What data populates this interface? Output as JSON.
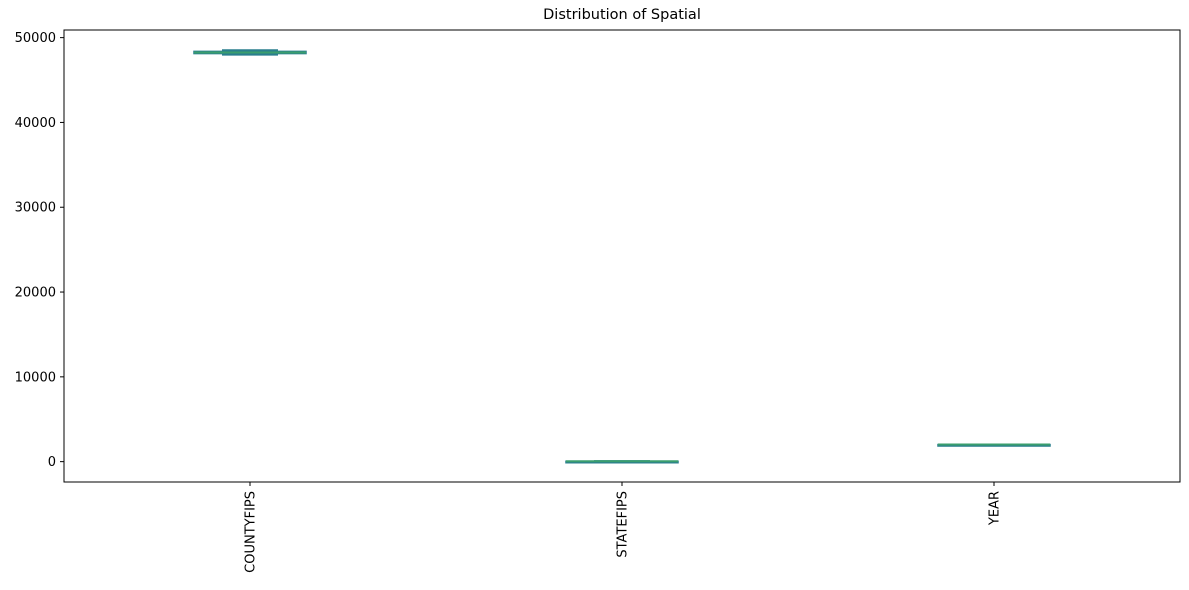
{
  "chart_data": {
    "type": "box",
    "title": "Distribution of Spatial",
    "xlabel": "",
    "ylabel": "",
    "categories": [
      "COUNTYFIPS",
      "STATEFIPS",
      "YEAR"
    ],
    "boxes": [
      {
        "category": "COUNTYFIPS",
        "whisker_low": 48001,
        "q1": 48120,
        "median": 48240,
        "q3": 48380,
        "whisker_high": 48507
      },
      {
        "category": "STATEFIPS",
        "whisker_low": 48,
        "q1": 48,
        "median": 48,
        "q3": 48,
        "whisker_high": 48
      },
      {
        "category": "YEAR",
        "whisker_low": 2010,
        "q1": 2013,
        "median": 2016,
        "q3": 2019,
        "whisker_high": 2022
      }
    ],
    "yticks": [
      0,
      10000,
      20000,
      30000,
      40000,
      50000
    ],
    "ylim": [
      -2400,
      50900
    ],
    "grid": false,
    "legend": "none",
    "colors": {
      "box": "#2a7f8e",
      "median": "#3a9e6e",
      "axis": "#000000"
    }
  }
}
